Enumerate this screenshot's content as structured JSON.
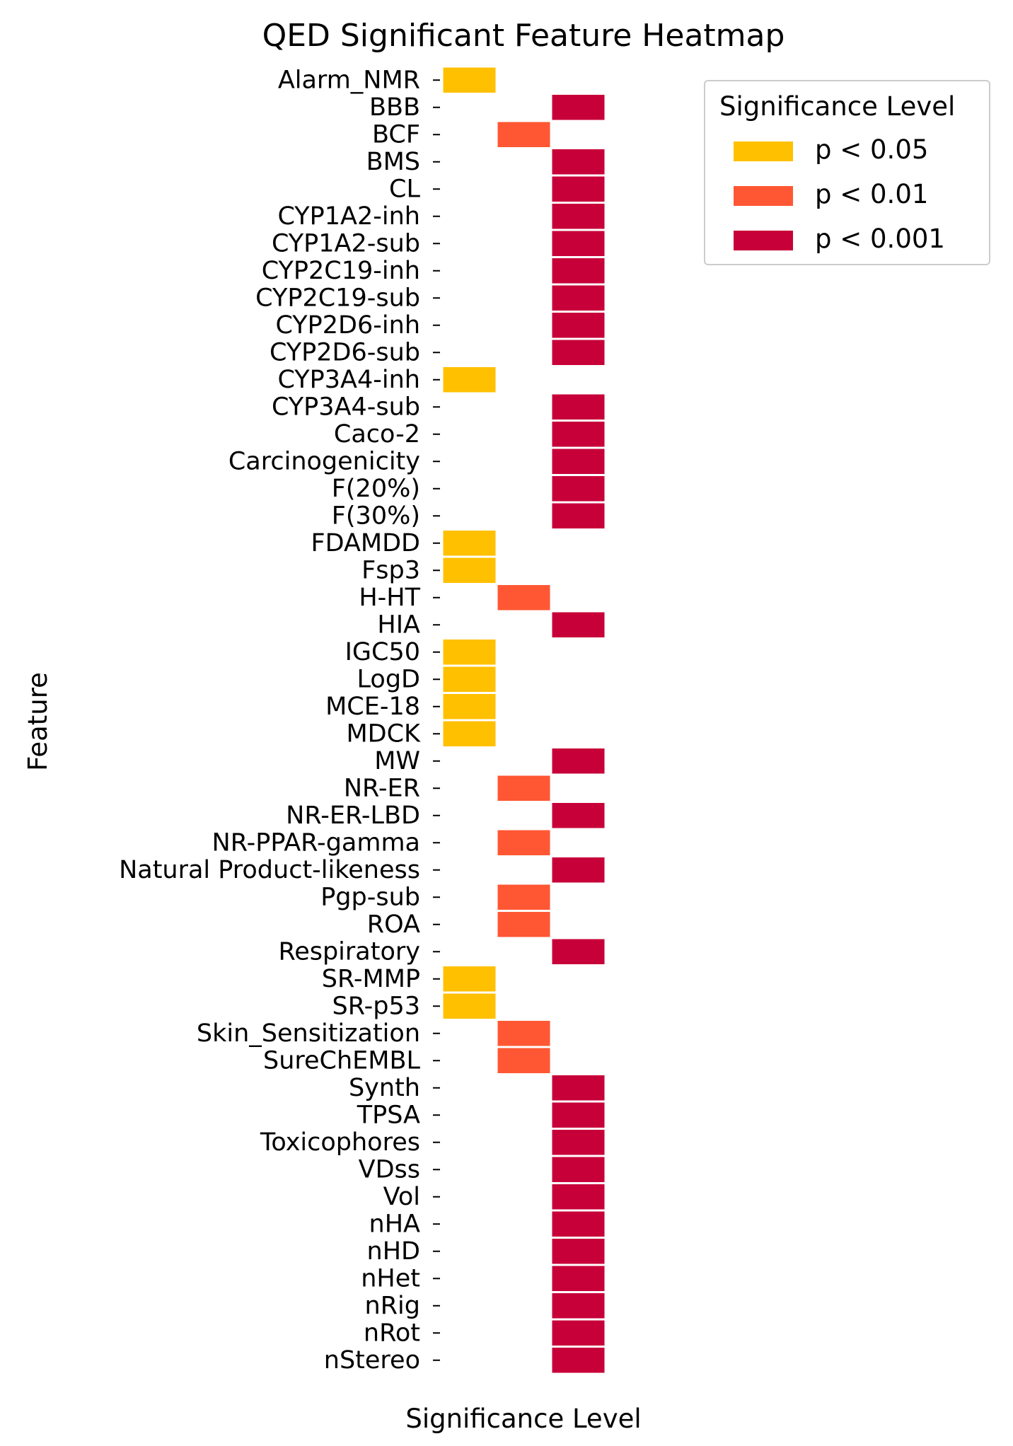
{
  "chart_data": {
    "type": "heatmap",
    "title": "QED Significant Feature Heatmap",
    "xlabel": "Significance Level",
    "ylabel": "Feature",
    "levels": [
      "p < 0.05",
      "p < 0.01",
      "p < 0.001"
    ],
    "colors": {
      "p < 0.05": "#ffc000",
      "p < 0.01": "#ff5733",
      "p < 0.001": "#c70039"
    },
    "legend": {
      "title": "Significance Level",
      "location": "top-right, outside plot"
    },
    "grid": false,
    "rows": [
      {
        "feature": "Alarm_NMR",
        "level": "p < 0.05"
      },
      {
        "feature": "BBB",
        "level": "p < 0.001"
      },
      {
        "feature": "BCF",
        "level": "p < 0.01"
      },
      {
        "feature": "BMS",
        "level": "p < 0.001"
      },
      {
        "feature": "CL",
        "level": "p < 0.001"
      },
      {
        "feature": "CYP1A2-inh",
        "level": "p < 0.001"
      },
      {
        "feature": "CYP1A2-sub",
        "level": "p < 0.001"
      },
      {
        "feature": "CYP2C19-inh",
        "level": "p < 0.001"
      },
      {
        "feature": "CYP2C19-sub",
        "level": "p < 0.001"
      },
      {
        "feature": "CYP2D6-inh",
        "level": "p < 0.001"
      },
      {
        "feature": "CYP2D6-sub",
        "level": "p < 0.001"
      },
      {
        "feature": "CYP3A4-inh",
        "level": "p < 0.05"
      },
      {
        "feature": "CYP3A4-sub",
        "level": "p < 0.001"
      },
      {
        "feature": "Caco-2",
        "level": "p < 0.001"
      },
      {
        "feature": "Carcinogenicity",
        "level": "p < 0.001"
      },
      {
        "feature": "F(20%)",
        "level": "p < 0.001"
      },
      {
        "feature": "F(30%)",
        "level": "p < 0.001"
      },
      {
        "feature": "FDAMDD",
        "level": "p < 0.05"
      },
      {
        "feature": "Fsp3",
        "level": "p < 0.05"
      },
      {
        "feature": "H-HT",
        "level": "p < 0.01"
      },
      {
        "feature": "HIA",
        "level": "p < 0.001"
      },
      {
        "feature": "IGC50",
        "level": "p < 0.05"
      },
      {
        "feature": "LogD",
        "level": "p < 0.05"
      },
      {
        "feature": "MCE-18",
        "level": "p < 0.05"
      },
      {
        "feature": "MDCK",
        "level": "p < 0.05"
      },
      {
        "feature": "MW",
        "level": "p < 0.001"
      },
      {
        "feature": "NR-ER",
        "level": "p < 0.01"
      },
      {
        "feature": "NR-ER-LBD",
        "level": "p < 0.001"
      },
      {
        "feature": "NR-PPAR-gamma",
        "level": "p < 0.01"
      },
      {
        "feature": "Natural Product-likeness",
        "level": "p < 0.001"
      },
      {
        "feature": "Pgp-sub",
        "level": "p < 0.01"
      },
      {
        "feature": "ROA",
        "level": "p < 0.01"
      },
      {
        "feature": "Respiratory",
        "level": "p < 0.001"
      },
      {
        "feature": "SR-MMP",
        "level": "p < 0.05"
      },
      {
        "feature": "SR-p53",
        "level": "p < 0.05"
      },
      {
        "feature": "Skin_Sensitization",
        "level": "p < 0.01"
      },
      {
        "feature": "SureChEMBL",
        "level": "p < 0.01"
      },
      {
        "feature": "Synth",
        "level": "p < 0.001"
      },
      {
        "feature": "TPSA",
        "level": "p < 0.001"
      },
      {
        "feature": "Toxicophores",
        "level": "p < 0.001"
      },
      {
        "feature": "VDss",
        "level": "p < 0.001"
      },
      {
        "feature": "Vol",
        "level": "p < 0.001"
      },
      {
        "feature": "nHA",
        "level": "p < 0.001"
      },
      {
        "feature": "nHD",
        "level": "p < 0.001"
      },
      {
        "feature": "nHet",
        "level": "p < 0.001"
      },
      {
        "feature": "nRig",
        "level": "p < 0.001"
      },
      {
        "feature": "nRot",
        "level": "p < 0.001"
      },
      {
        "feature": "nStereo",
        "level": "p < 0.001"
      }
    ]
  }
}
